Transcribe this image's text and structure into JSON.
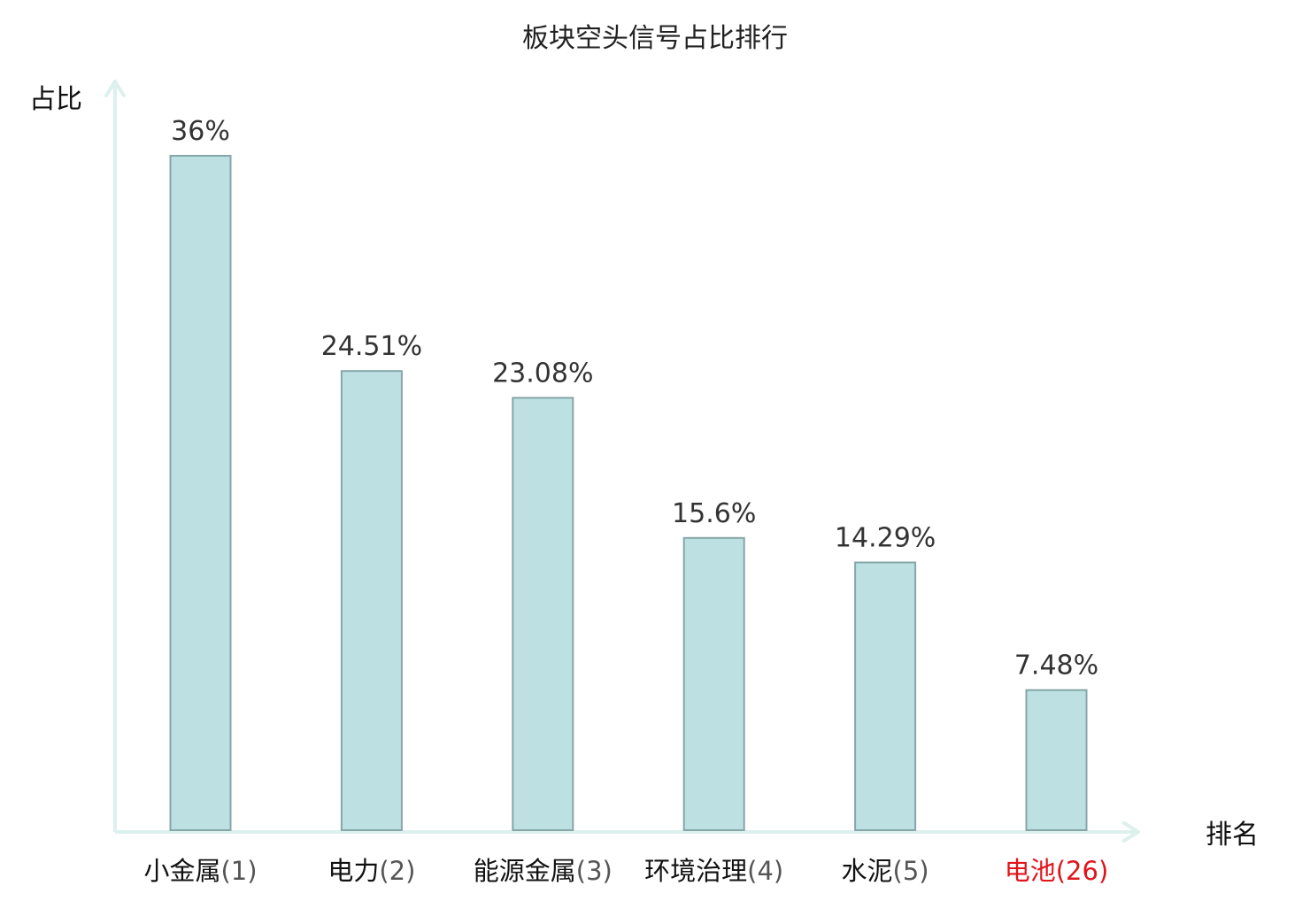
{
  "chart_data": {
    "type": "bar",
    "title": "板块空头信号占比排行",
    "xlabel": "排名",
    "ylabel": "占比",
    "categories": [
      {
        "name": "小金属",
        "rank": "(1)"
      },
      {
        "name": "电力",
        "rank": "(2)"
      },
      {
        "name": "能源金属",
        "rank": "(3)"
      },
      {
        "name": "环境治理",
        "rank": "(4)"
      },
      {
        "name": "水泥",
        "rank": "(5)"
      },
      {
        "name": "电池",
        "rank": "(26)",
        "highlight": true
      }
    ],
    "values": [
      36,
      24.51,
      23.08,
      15.6,
      14.29,
      7.48
    ],
    "value_labels": [
      "36%",
      "24.51%",
      "23.08%",
      "15.6%",
      "14.29%",
      "7.48%"
    ],
    "ylim": [
      0,
      36
    ],
    "grid": false,
    "colors": {
      "bar_fill": "#bde1e3",
      "bar_stroke": "#86a6a9",
      "axis": "#dcf0ee",
      "label_text": "#333333",
      "category_text": "#111111",
      "rank_text": "#555555",
      "highlight_text": "#e0141c"
    }
  }
}
